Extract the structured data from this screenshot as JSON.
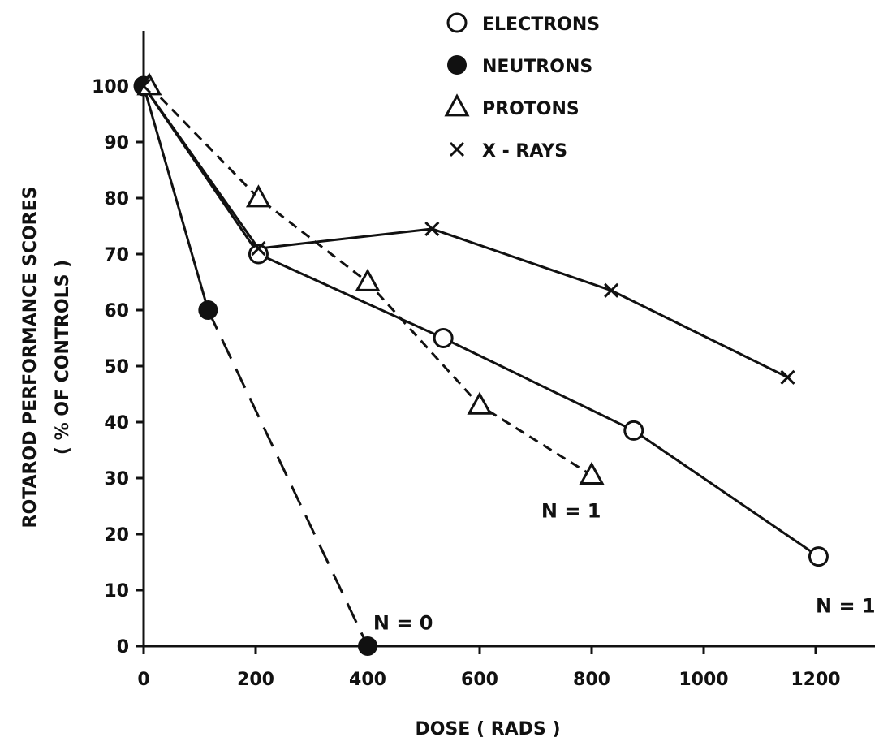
{
  "chart_data": {
    "type": "line",
    "xlabel": "DOSE ( RADS )",
    "ylabel_lines": [
      "ROTAROD PERFORMANCE SCORES",
      "( % OF CONTROLS )"
    ],
    "xlim": [
      0,
      1300
    ],
    "ylim": [
      0,
      110
    ],
    "x_ticks": [
      0,
      200,
      400,
      600,
      800,
      1000,
      1200
    ],
    "y_ticks": [
      0,
      10,
      20,
      30,
      40,
      50,
      60,
      70,
      80,
      90,
      100
    ],
    "x_tick_labels": [
      "0",
      "200",
      "400",
      "600",
      "800",
      "1000",
      "1200"
    ],
    "y_tick_labels": [
      "0",
      "10",
      "20",
      "30",
      "40",
      "50",
      "60",
      "70",
      "80",
      "90",
      "100"
    ],
    "grid": false,
    "legend_position": "top-center",
    "series": [
      {
        "name": "ELECTRONS",
        "marker": "open-circle",
        "line": "solid",
        "x": [
          0,
          205,
          535,
          875,
          1205
        ],
        "y": [
          100,
          70,
          55,
          38.5,
          16
        ]
      },
      {
        "name": "NEUTRONS",
        "marker": "filled-circle",
        "line": "solid-then-long-dash",
        "x": [
          0,
          115,
          400
        ],
        "y": [
          100,
          60,
          0
        ]
      },
      {
        "name": "PROTONS",
        "marker": "open-triangle",
        "line": "short-dash",
        "x": [
          10,
          205,
          400,
          600,
          800
        ],
        "y": [
          100,
          80,
          65,
          43,
          30.5
        ]
      },
      {
        "name": "X - RAYS",
        "marker": "x",
        "line": "solid",
        "x": [
          0,
          205,
          515,
          835,
          1150
        ],
        "y": [
          100,
          71,
          74.5,
          63.5,
          48
        ]
      }
    ],
    "annotations": [
      {
        "text": "N = 0",
        "x": 410,
        "y": 3
      },
      {
        "text": "N = 1",
        "x": 710,
        "y": 23
      },
      {
        "text": "N = 1",
        "x": 1200,
        "y": 6
      }
    ]
  }
}
